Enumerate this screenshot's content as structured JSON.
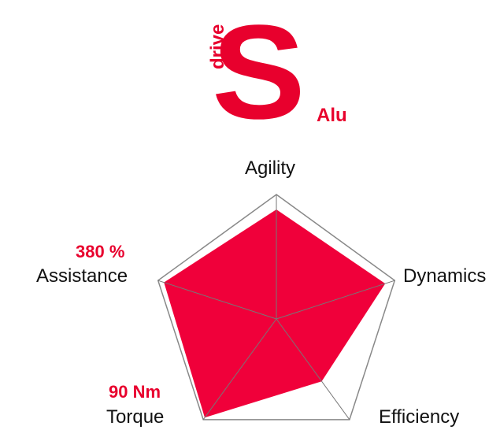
{
  "logo": {
    "letter": "S",
    "word_vertical": "drive",
    "word_suffix": "Alu",
    "color": "#e8002d"
  },
  "chart_data": {
    "type": "radar",
    "axes": [
      "Agility",
      "Dynamics",
      "Efficiency",
      "Torque",
      "Assistance"
    ],
    "values": [
      0.88,
      0.92,
      0.62,
      0.98,
      0.95
    ],
    "max": 1,
    "fill_color": "#f0003a",
    "annotations": {
      "Assistance": "380 %",
      "Torque": "90 Nm"
    }
  },
  "colors": {
    "accent": "#e8002d",
    "fill": "#f0003a",
    "grid": "#888888",
    "text": "#111111"
  }
}
